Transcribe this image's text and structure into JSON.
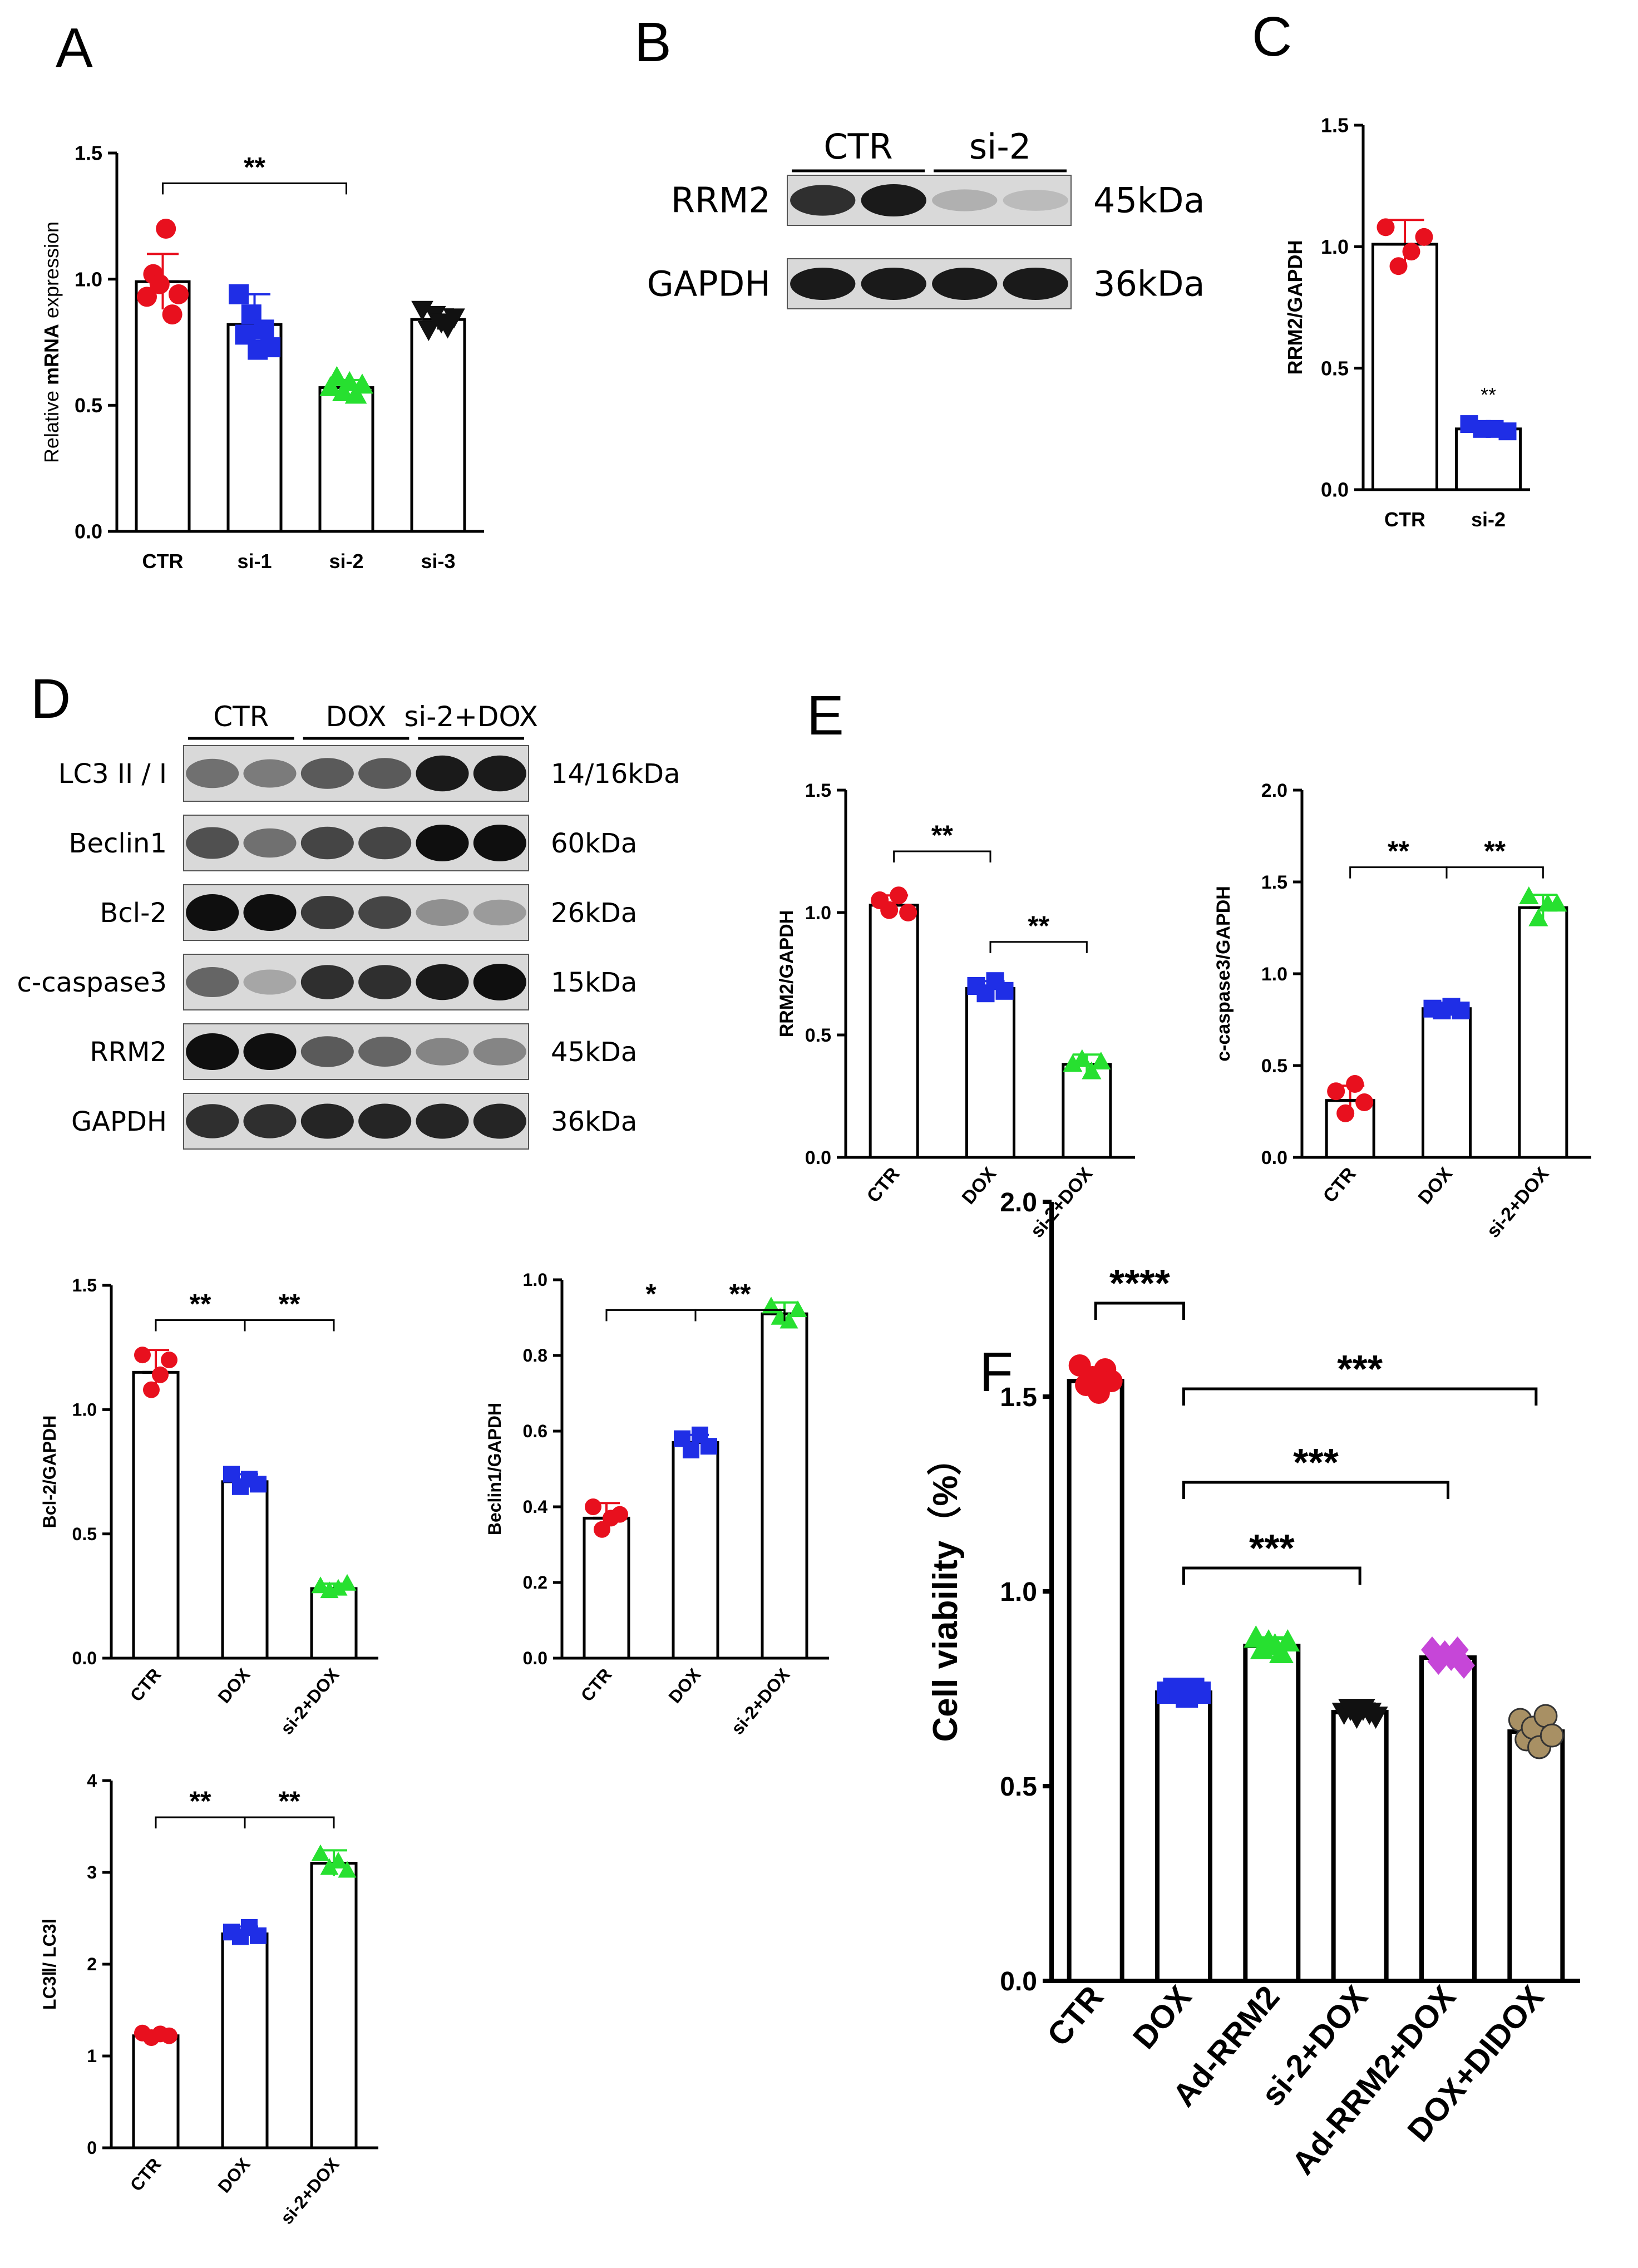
{
  "panel_letters": [
    "A",
    "B",
    "C",
    "D",
    "E",
    "F"
  ],
  "colors": {
    "red": "#e8101e",
    "blue": "#1f2ee6",
    "green": "#27e030",
    "black": "#111111",
    "magenta": "#c646d8",
    "tan": "#a89064"
  },
  "blot_B": {
    "groups": [
      {
        "label": "CTR",
        "lanes": 2
      },
      {
        "label": "si-2",
        "lanes": 2
      }
    ],
    "rows": [
      {
        "name": "RRM2",
        "size": "45kDa",
        "intensity": [
          0.85,
          0.95,
          0.25,
          0.2
        ]
      },
      {
        "name": "GAPDH",
        "size": "36kDa",
        "intensity": [
          0.95,
          0.95,
          0.95,
          0.95
        ]
      }
    ]
  },
  "blot_D": {
    "groups": [
      {
        "label": "CTR",
        "lanes": 2
      },
      {
        "label": "DOX",
        "lanes": 2
      },
      {
        "label": "si-2+DOX",
        "lanes": 2
      }
    ],
    "rows": [
      {
        "name": "LC3 II / I",
        "size": "14/16kDa",
        "intensity": [
          0.55,
          0.5,
          0.65,
          0.65,
          0.95,
          0.95
        ]
      },
      {
        "name": "Beclin1",
        "size": "60kDa",
        "intensity": [
          0.7,
          0.55,
          0.75,
          0.75,
          1.0,
          1.0
        ]
      },
      {
        "name": "Bcl-2",
        "size": "26kDa",
        "intensity": [
          1.0,
          1.0,
          0.8,
          0.75,
          0.4,
          0.35
        ]
      },
      {
        "name": "c-caspase3",
        "size": "15kDa",
        "intensity": [
          0.6,
          0.3,
          0.85,
          0.85,
          0.95,
          1.0
        ]
      },
      {
        "name": "RRM2",
        "size": "45kDa",
        "intensity": [
          1.0,
          1.0,
          0.65,
          0.6,
          0.45,
          0.45
        ]
      },
      {
        "name": "GAPDH",
        "size": "36kDa",
        "intensity": [
          0.85,
          0.85,
          0.9,
          0.9,
          0.9,
          0.9
        ]
      }
    ]
  },
  "chart_data": [
    {
      "id": "A",
      "type": "bar",
      "title": "",
      "ylabel_plain": "Relative ",
      "ylabel_bold": "mRNA",
      "ylabel_rest": " expression",
      "ylim": [
        0,
        1.5
      ],
      "yticks": [
        "0.0",
        "0.5",
        "1.0",
        "1.5"
      ],
      "categories": [
        "CTR",
        "si-1",
        "si-2",
        "si-3"
      ],
      "values": [
        0.99,
        0.82,
        0.57,
        0.84
      ],
      "errors": [
        0.11,
        0.12,
        0.03,
        0.04
      ],
      "point_colors": [
        "red",
        "blue",
        "green",
        "black"
      ],
      "markers": [
        "circle",
        "square",
        "triangle",
        "triangle-down"
      ],
      "points": [
        [
          0.93,
          1.02,
          0.98,
          1.2,
          0.86,
          0.94
        ],
        [
          0.94,
          0.78,
          0.86,
          0.72,
          0.8,
          0.73
        ],
        [
          0.57,
          0.61,
          0.55,
          0.59,
          0.54,
          0.58
        ],
        [
          0.88,
          0.8,
          0.86,
          0.83,
          0.81,
          0.85
        ]
      ],
      "sig": [
        {
          "from": 0,
          "to": 2,
          "label": "**"
        }
      ]
    },
    {
      "id": "C",
      "type": "bar",
      "ylabel": "RRM2/GAPDH",
      "ylim": [
        0,
        1.5
      ],
      "yticks": [
        "0.0",
        "0.5",
        "1.0",
        "1.5"
      ],
      "categories": [
        "CTR",
        "si-2"
      ],
      "values": [
        1.01,
        0.25
      ],
      "errors": [
        0.1,
        0.02
      ],
      "point_colors": [
        "red",
        "blue"
      ],
      "markers": [
        "circle",
        "square"
      ],
      "points": [
        [
          1.08,
          0.92,
          0.98,
          1.04
        ],
        [
          0.27,
          0.25,
          0.25,
          0.24
        ]
      ],
      "star_labels": [
        {
          "bar": 1,
          "label": "**"
        }
      ]
    },
    {
      "id": "E1",
      "type": "bar",
      "ylabel": "RRM2/GAPDH",
      "ylim": [
        0,
        1.5
      ],
      "yticks": [
        "0.0",
        "0.5",
        "1.0",
        "1.5"
      ],
      "categories": [
        "CTR",
        "DOX",
        "si-2+DOX"
      ],
      "values": [
        1.03,
        0.69,
        0.38
      ],
      "errors": [
        0.04,
        0.03,
        0.04
      ],
      "point_colors": [
        "red",
        "blue",
        "green"
      ],
      "markers": [
        "circle",
        "square",
        "triangle"
      ],
      "points": [
        [
          1.05,
          1.01,
          1.07,
          1.0
        ],
        [
          0.7,
          0.67,
          0.72,
          0.68
        ],
        [
          0.38,
          0.4,
          0.35,
          0.39
        ]
      ],
      "sig": [
        {
          "from": 0,
          "to": 1,
          "label": "**"
        },
        {
          "from": 1,
          "to": 2,
          "label": "**"
        }
      ]
    },
    {
      "id": "E2",
      "type": "bar",
      "ylabel": "c-caspase3/GAPDH",
      "ylim": [
        0,
        2.0
      ],
      "yticks": [
        "0.0",
        "0.5",
        "1.0",
        "1.5",
        "2.0"
      ],
      "categories": [
        "CTR",
        "DOX",
        "si-2+DOX"
      ],
      "values": [
        0.31,
        0.81,
        1.36
      ],
      "errors": [
        0.08,
        0.02,
        0.07
      ],
      "point_colors": [
        "red",
        "blue",
        "green"
      ],
      "markers": [
        "circle",
        "square",
        "triangle"
      ],
      "points": [
        [
          0.36,
          0.24,
          0.4,
          0.3
        ],
        [
          0.81,
          0.8,
          0.82,
          0.8
        ],
        [
          1.42,
          1.3,
          1.38,
          1.38
        ]
      ],
      "sig": [
        {
          "from": 0,
          "to": 1,
          "label": "**"
        },
        {
          "from": 1,
          "to": 2,
          "label": "**"
        }
      ]
    },
    {
      "id": "D1",
      "type": "bar",
      "ylabel": "Bcl-2/GAPDH",
      "ylim": [
        0,
        1.5
      ],
      "yticks": [
        "0.0",
        "0.5",
        "1.0",
        "1.5"
      ],
      "categories": [
        "CTR",
        "DOX",
        "si-2+DOX"
      ],
      "values": [
        1.15,
        0.71,
        0.28
      ],
      "errors": [
        0.09,
        0.03,
        0.02
      ],
      "point_colors": [
        "red",
        "blue",
        "green"
      ],
      "markers": [
        "circle",
        "square",
        "triangle"
      ],
      "points": [
        [
          1.22,
          1.08,
          1.14,
          1.2
        ],
        [
          0.74,
          0.69,
          0.72,
          0.7
        ],
        [
          0.29,
          0.27,
          0.28,
          0.3
        ]
      ],
      "sig": [
        {
          "from": 0,
          "to": 1,
          "label": "**"
        },
        {
          "from": 1,
          "to": 2,
          "label": "**"
        }
      ]
    },
    {
      "id": "D2",
      "type": "bar",
      "ylabel": "Beclin1/GAPDH",
      "ylim": [
        0,
        1.0
      ],
      "yticks": [
        "0.0",
        "0.2",
        "0.4",
        "0.6",
        "0.8",
        "1.0"
      ],
      "categories": [
        "CTR",
        "DOX",
        "si-2+DOX"
      ],
      "values": [
        0.37,
        0.57,
        0.91
      ],
      "errors": [
        0.04,
        0.02,
        0.03
      ],
      "point_colors": [
        "red",
        "blue",
        "green"
      ],
      "markers": [
        "circle",
        "square",
        "triangle"
      ],
      "points": [
        [
          0.4,
          0.34,
          0.37,
          0.38
        ],
        [
          0.58,
          0.55,
          0.59,
          0.56
        ],
        [
          0.93,
          0.9,
          0.89,
          0.92
        ]
      ],
      "sig": [
        {
          "from": 0,
          "to": 1,
          "label": "*"
        },
        {
          "from": 1,
          "to": 2,
          "label": "**"
        }
      ]
    },
    {
      "id": "D3",
      "type": "bar",
      "ylabel": "LC3Ⅱ/ LC3Ⅰ",
      "ylim": [
        0,
        4
      ],
      "yticks": [
        "0",
        "1",
        "2",
        "3",
        "4"
      ],
      "categories": [
        "CTR",
        "DOX",
        "si-2+DOX"
      ],
      "values": [
        1.22,
        2.33,
        3.1
      ],
      "errors": [
        0.05,
        0.08,
        0.14
      ],
      "point_colors": [
        "red",
        "blue",
        "green"
      ],
      "markers": [
        "circle",
        "square",
        "triangle"
      ],
      "points": [
        [
          1.25,
          1.2,
          1.24,
          1.22
        ],
        [
          2.35,
          2.3,
          2.4,
          2.31
        ],
        [
          3.2,
          3.05,
          3.12,
          3.02
        ]
      ],
      "sig": [
        {
          "from": 0,
          "to": 1,
          "label": "**"
        },
        {
          "from": 1,
          "to": 2,
          "label": "**"
        }
      ]
    },
    {
      "id": "F",
      "type": "bar",
      "ylabel": "Cell viability（%）",
      "ylim": [
        0,
        2.0
      ],
      "yticks": [
        "0.0",
        "0.5",
        "1.0",
        "1.5",
        "2.0"
      ],
      "categories": [
        "CTR",
        "DOX",
        "Ad-RRM2",
        "si-2+DOX",
        "Ad-RRM2+DOX",
        "DOX+DIDOX"
      ],
      "values": [
        1.54,
        0.74,
        0.86,
        0.69,
        0.83,
        0.64
      ],
      "errors": [
        0.03,
        0.01,
        0.02,
        0.02,
        0.02,
        0.03
      ],
      "point_colors": [
        "red",
        "blue",
        "green",
        "black",
        "magenta",
        "tan"
      ],
      "markers": [
        "circle",
        "square",
        "triangle",
        "triangle-down",
        "diamond",
        "circle"
      ],
      "points": [
        [
          1.58,
          1.53,
          1.55,
          1.51,
          1.57,
          1.54
        ],
        [
          0.74,
          0.75,
          0.74,
          0.73,
          0.75,
          0.74
        ],
        [
          0.88,
          0.85,
          0.87,
          0.86,
          0.84,
          0.87
        ],
        [
          0.69,
          0.7,
          0.68,
          0.7,
          0.69,
          0.68
        ],
        [
          0.85,
          0.82,
          0.84,
          0.83,
          0.85,
          0.81
        ],
        [
          0.67,
          0.62,
          0.65,
          0.6,
          0.68,
          0.63
        ]
      ],
      "sig": [
        {
          "from": 0,
          "to": 1,
          "label": "****",
          "level": 0
        },
        {
          "from": 1,
          "to": 3,
          "label": "***",
          "level": 1
        },
        {
          "from": 1,
          "to": 4,
          "label": "***",
          "level": 2
        },
        {
          "from": 1,
          "to": 5,
          "label": "***",
          "level": 3
        }
      ]
    }
  ]
}
